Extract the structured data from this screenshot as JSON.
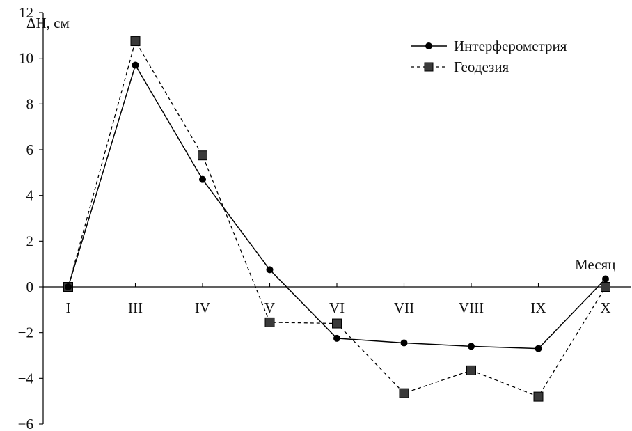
{
  "chart_data": {
    "type": "line",
    "ylabel": "ΔH, см",
    "xlabel": "Месяц",
    "categories": [
      "I",
      "III",
      "IV",
      "V",
      "VI",
      "VII",
      "VIII",
      "IX",
      "X"
    ],
    "ylim": [
      -6,
      12
    ],
    "yticks": [
      -6,
      -4,
      -2,
      0,
      2,
      4,
      6,
      8,
      10,
      12
    ],
    "ytick_labels": [
      "−6",
      "−4",
      "−2",
      "0",
      "2",
      "4",
      "6",
      "8",
      "10",
      "12"
    ],
    "legend_position": "top-right",
    "grid": false,
    "series": [
      {
        "name": "Интерферометрия",
        "values": [
          0.0,
          9.7,
          4.7,
          0.75,
          -2.25,
          -2.45,
          -2.6,
          -2.7,
          0.35
        ],
        "marker": "circle",
        "line_style": "solid",
        "color": "#000000"
      },
      {
        "name": "Геодезия",
        "values": [
          0.0,
          10.75,
          5.75,
          -1.55,
          -1.6,
          -4.65,
          -3.65,
          -4.8,
          0.0
        ],
        "marker": "square",
        "line_style": "dashed",
        "color": "#000000",
        "marker_fill": "#3a3a3a"
      }
    ]
  }
}
